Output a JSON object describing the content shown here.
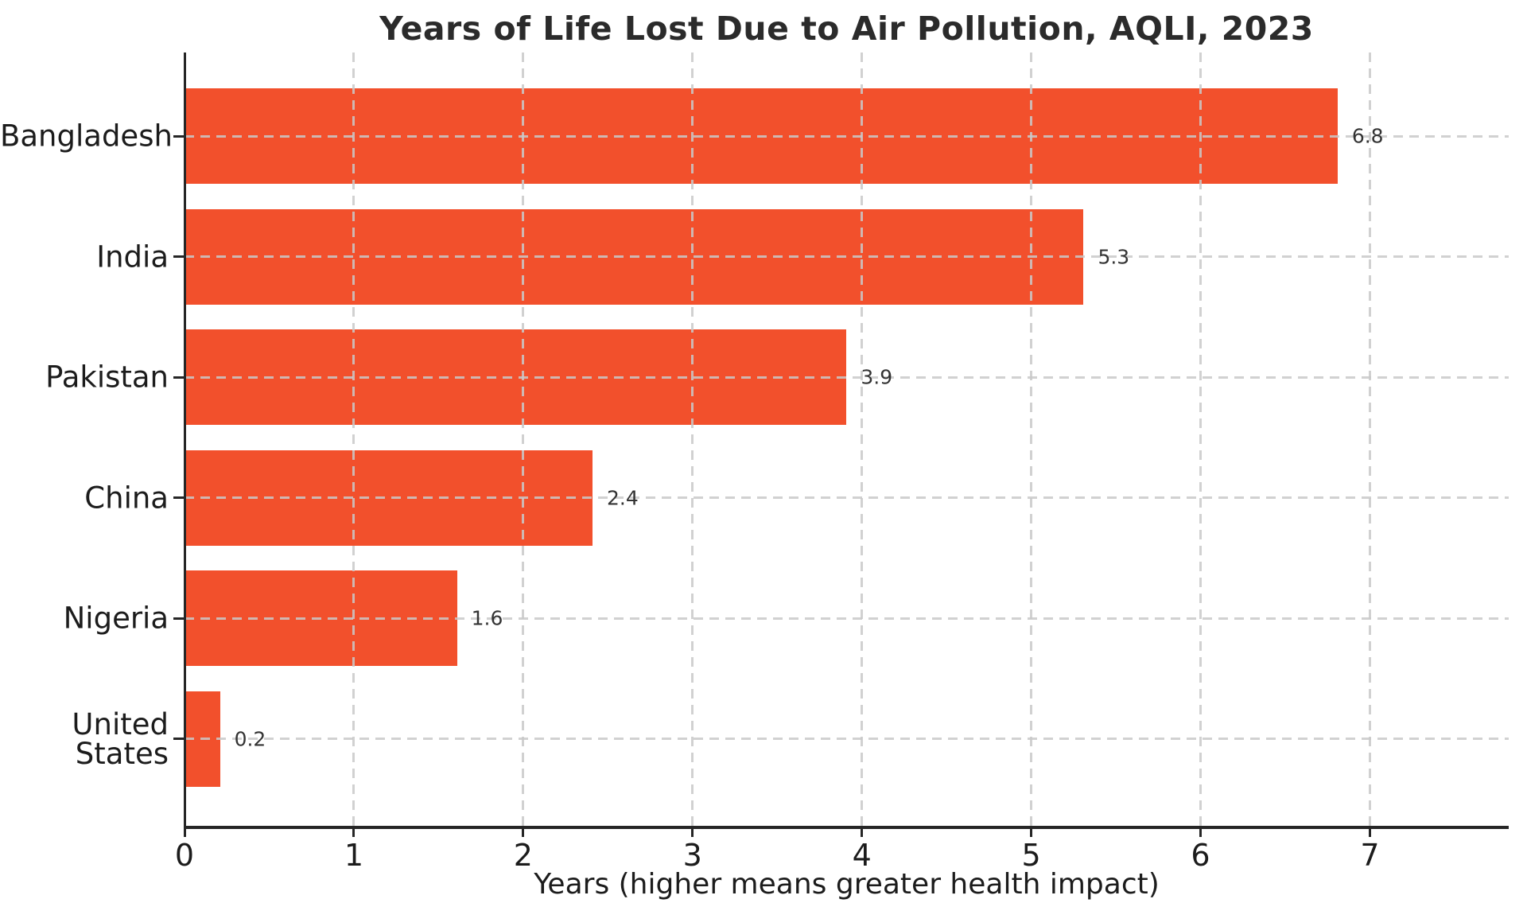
{
  "chart_data": {
    "type": "bar",
    "orientation": "horizontal",
    "title": "Years of Life Lost Due to Air Pollution, AQLI, 2023",
    "xlabel": "Years (higher means greater health impact)",
    "ylabel": "",
    "categories": [
      "Bangladesh",
      "India",
      "Pakistan",
      "China",
      "Nigeria",
      "United States"
    ],
    "values": [
      6.8,
      5.3,
      3.9,
      2.4,
      1.6,
      0.2
    ],
    "value_labels": [
      "6.8",
      "5.3",
      "3.9",
      "2.4",
      "1.6",
      "0.2"
    ],
    "xticks": [
      "0",
      "1",
      "2",
      "3",
      "4",
      "5",
      "6",
      "7"
    ],
    "xlim": [
      0,
      7.82
    ],
    "grid": "both, dashed, drawn above bars",
    "legend": null,
    "colors": {
      "bar": "#f2502c",
      "grid": "#c9c9c9",
      "axis": "#262626",
      "tick_text": "#1c1c1c",
      "value_text": "#333333",
      "title_text": "#2b2b2b",
      "background": "#ffffff"
    }
  }
}
